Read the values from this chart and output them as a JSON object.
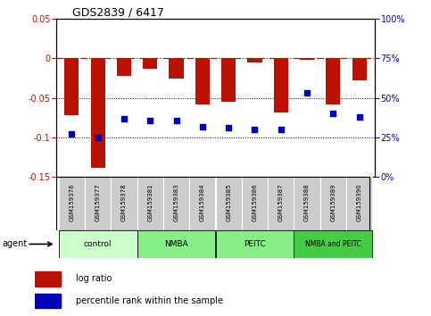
{
  "title": "GDS2839 / 6417",
  "samples": [
    "GSM159376",
    "GSM159377",
    "GSM159378",
    "GSM159381",
    "GSM159383",
    "GSM159384",
    "GSM159385",
    "GSM159386",
    "GSM159387",
    "GSM159388",
    "GSM159389",
    "GSM159390"
  ],
  "log_ratio": [
    -0.072,
    -0.138,
    -0.022,
    -0.013,
    -0.025,
    -0.058,
    -0.055,
    -0.005,
    -0.068,
    -0.002,
    -0.058,
    -0.028
  ],
  "percentile_rank": [
    27,
    25,
    37,
    36,
    36,
    32,
    31,
    30,
    30,
    53,
    40,
    38
  ],
  "bar_color": "#bb1100",
  "dot_color": "#0000bb",
  "ylim_left": [
    -0.15,
    0.05
  ],
  "ylim_right": [
    0,
    100
  ],
  "yticks_left": [
    -0.15,
    -0.1,
    -0.05,
    0,
    0.05
  ],
  "yticks_right": [
    0,
    25,
    50,
    75,
    100
  ],
  "dotted_lines": [
    -0.05,
    -0.1
  ],
  "group_colors": [
    "#ccffcc",
    "#88ee88",
    "#88ee88",
    "#44cc44"
  ],
  "group_labels": [
    "control",
    "NMBA",
    "PEITC",
    "NMBA and PEITC"
  ],
  "group_starts": [
    0,
    3,
    6,
    9
  ],
  "group_ends": [
    3,
    6,
    9,
    12
  ],
  "agent_label": "agent",
  "legend_bar_label": "log ratio",
  "legend_dot_label": "percentile rank within the sample",
  "sample_box_color": "#cccccc",
  "figsize": [
    4.83,
    3.54
  ],
  "dpi": 100
}
